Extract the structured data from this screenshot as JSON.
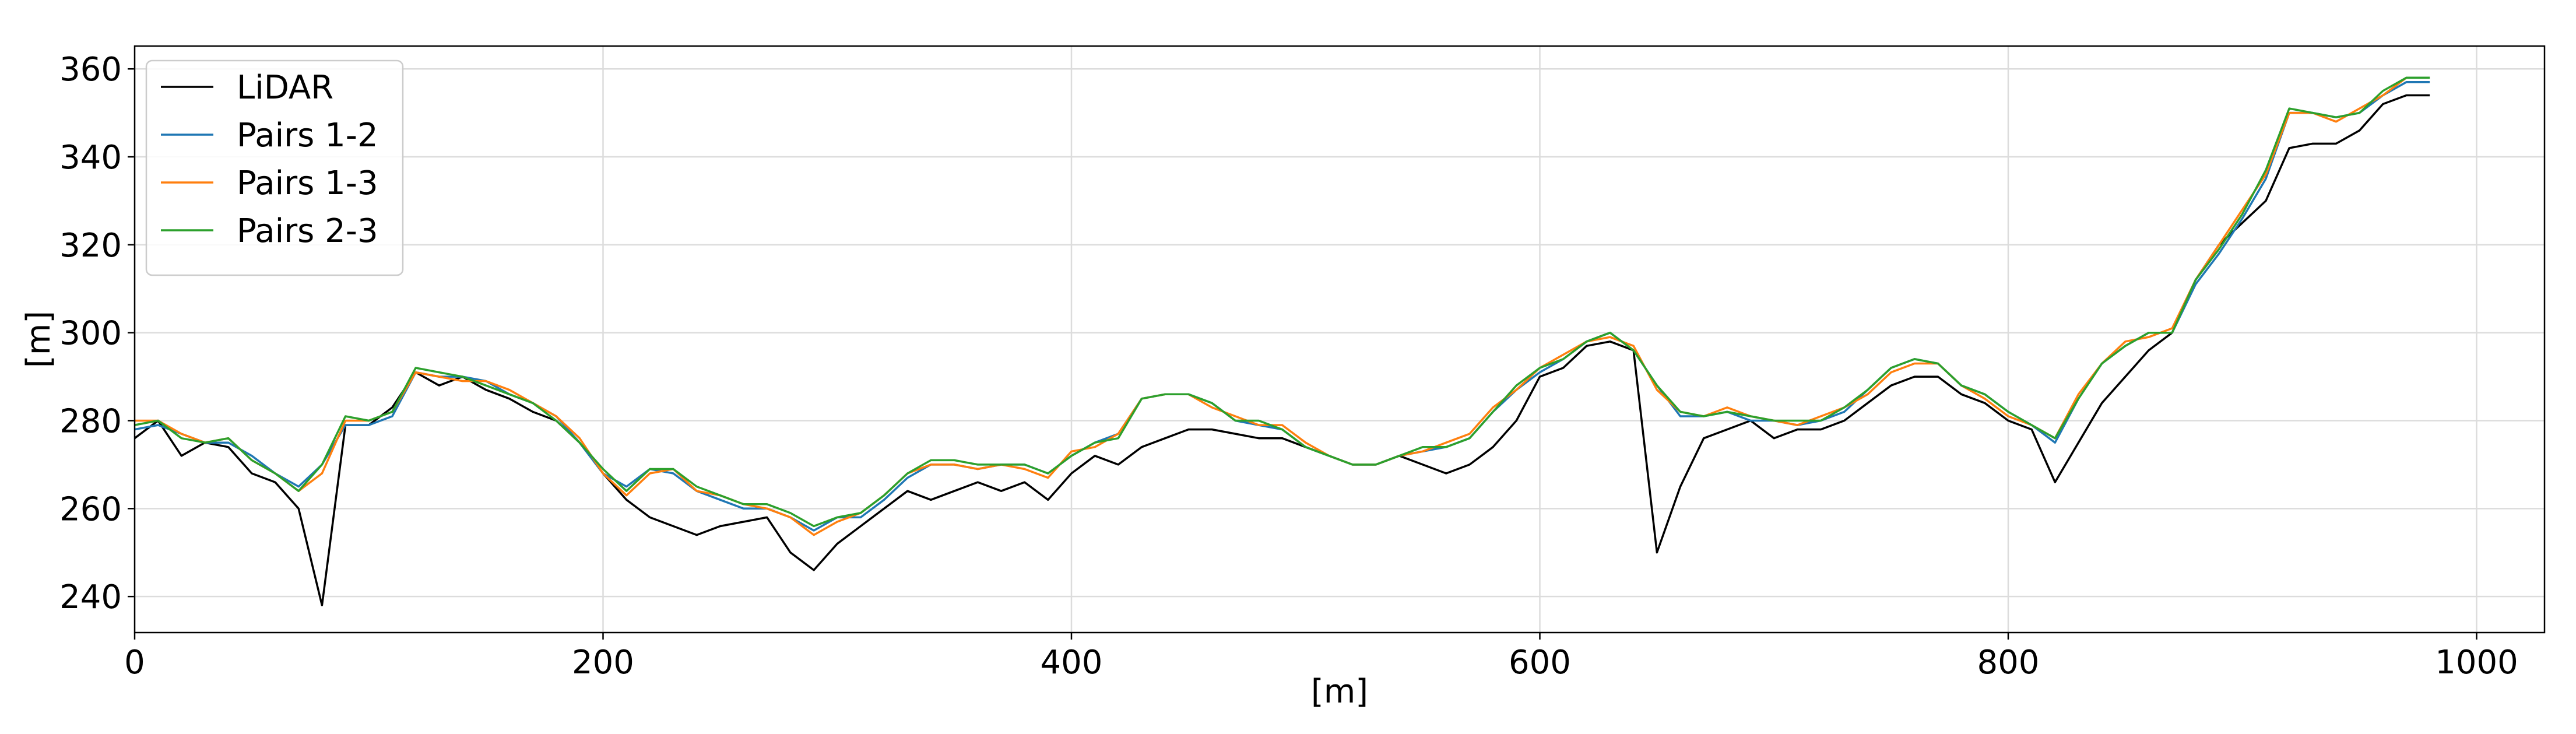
{
  "chart_data": {
    "type": "line",
    "xlabel": "[m]",
    "ylabel": "[m]",
    "x": [
      0,
      10,
      20,
      30,
      40,
      50,
      60,
      70,
      80,
      90,
      100,
      110,
      120,
      130,
      140,
      150,
      160,
      170,
      180,
      190,
      200,
      210,
      220,
      230,
      240,
      250,
      260,
      270,
      280,
      290,
      300,
      310,
      320,
      330,
      340,
      350,
      360,
      370,
      380,
      390,
      400,
      410,
      420,
      430,
      440,
      450,
      460,
      470,
      480,
      490,
      500,
      510,
      520,
      530,
      540,
      550,
      560,
      570,
      580,
      590,
      600,
      610,
      620,
      630,
      640,
      650,
      660,
      670,
      680,
      690,
      700,
      710,
      720,
      730,
      740,
      750,
      760,
      770,
      780,
      790,
      800,
      810,
      820,
      830,
      840,
      850,
      860,
      870,
      880,
      890,
      900,
      910,
      920,
      930,
      940,
      950,
      960,
      970,
      980
    ],
    "series": [
      {
        "name": "LiDAR",
        "color": "#000000",
        "values": [
          276,
          280,
          272,
          275,
          274,
          268,
          266,
          260,
          238,
          279,
          279,
          283,
          291,
          288,
          290,
          287,
          285,
          282,
          280,
          275,
          268,
          262,
          258,
          256,
          254,
          256,
          257,
          258,
          250,
          246,
          252,
          256,
          260,
          264,
          262,
          264,
          266,
          264,
          266,
          262,
          268,
          272,
          270,
          274,
          276,
          278,
          278,
          277,
          276,
          276,
          274,
          272,
          270,
          270,
          272,
          270,
          268,
          270,
          274,
          280,
          290,
          292,
          297,
          298,
          296,
          250,
          265,
          276,
          278,
          280,
          276,
          278,
          278,
          280,
          284,
          288,
          290,
          290,
          286,
          284,
          280,
          278,
          266,
          275,
          284,
          290,
          296,
          300,
          312,
          320,
          325,
          330,
          342,
          343,
          343,
          346,
          352,
          354,
          354
        ]
      },
      {
        "name": "Pairs 1-2",
        "color": "#1f77b4",
        "values": [
          278,
          279,
          277,
          275,
          275,
          272,
          268,
          265,
          270,
          279,
          279,
          281,
          291,
          290,
          290,
          289,
          286,
          284,
          281,
          275,
          268,
          265,
          269,
          268,
          264,
          262,
          260,
          260,
          258,
          255,
          258,
          258,
          262,
          267,
          270,
          270,
          269,
          270,
          270,
          268,
          272,
          275,
          277,
          285,
          286,
          286,
          284,
          280,
          279,
          278,
          274,
          272,
          270,
          270,
          272,
          273,
          274,
          276,
          282,
          287,
          291,
          294,
          298,
          300,
          296,
          288,
          281,
          281,
          282,
          280,
          280,
          279,
          280,
          282,
          287,
          292,
          294,
          293,
          288,
          286,
          282,
          279,
          275,
          285,
          293,
          297,
          300,
          300,
          311,
          318,
          326,
          335,
          350,
          350,
          349,
          350,
          354,
          357,
          357
        ]
      },
      {
        "name": "Pairs 1-3",
        "color": "#ff7f0e",
        "values": [
          280,
          280,
          277,
          275,
          276,
          271,
          268,
          264,
          268,
          280,
          280,
          282,
          291,
          290,
          289,
          289,
          287,
          284,
          281,
          276,
          268,
          263,
          268,
          269,
          264,
          263,
          261,
          260,
          258,
          254,
          257,
          259,
          263,
          268,
          270,
          270,
          269,
          270,
          269,
          267,
          273,
          274,
          277,
          285,
          286,
          286,
          283,
          281,
          279,
          279,
          275,
          272,
          270,
          270,
          272,
          273,
          275,
          277,
          283,
          287,
          292,
          295,
          298,
          299,
          297,
          287,
          282,
          281,
          283,
          281,
          280,
          279,
          281,
          283,
          286,
          291,
          293,
          293,
          288,
          285,
          281,
          279,
          276,
          286,
          293,
          298,
          299,
          301,
          312,
          320,
          328,
          336,
          350,
          350,
          348,
          351,
          354,
          358,
          358
        ]
      },
      {
        "name": "Pairs 2-3",
        "color": "#2ca02c",
        "values": [
          279,
          280,
          276,
          275,
          276,
          271,
          268,
          264,
          270,
          281,
          280,
          282,
          292,
          291,
          290,
          288,
          286,
          284,
          280,
          275,
          269,
          264,
          269,
          269,
          265,
          263,
          261,
          261,
          259,
          256,
          258,
          259,
          263,
          268,
          271,
          271,
          270,
          270,
          270,
          268,
          272,
          275,
          276,
          285,
          286,
          286,
          284,
          280,
          280,
          278,
          274,
          272,
          270,
          270,
          272,
          274,
          274,
          276,
          282,
          288,
          292,
          294,
          298,
          300,
          296,
          288,
          282,
          281,
          282,
          281,
          280,
          280,
          280,
          283,
          287,
          292,
          294,
          293,
          288,
          286,
          282,
          279,
          276,
          285,
          293,
          297,
          300,
          300,
          312,
          319,
          327,
          337,
          351,
          350,
          349,
          350,
          355,
          358,
          358
        ]
      }
    ],
    "xlim": [
      0,
      1029
    ],
    "ylim": [
      231.8,
      365.2
    ],
    "xticks": [
      0,
      200,
      400,
      600,
      800,
      1000
    ],
    "yticks": [
      240,
      260,
      280,
      300,
      320,
      340,
      360
    ],
    "grid": true,
    "legend": "upper-left"
  }
}
